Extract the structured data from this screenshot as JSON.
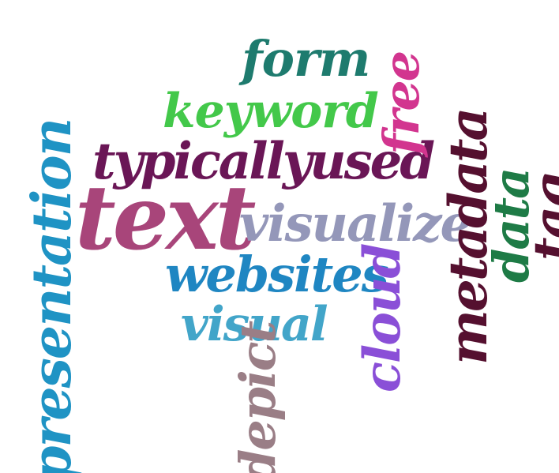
{
  "words": [
    {
      "id": "form",
      "text": "form",
      "color": "#1e7b6e",
      "orientation": "horizontal"
    },
    {
      "id": "keyword",
      "text": "keyword",
      "color": "#43c84a",
      "orientation": "horizontal"
    },
    {
      "id": "typicallyused",
      "text": "typicallyused",
      "color": "#6a1656",
      "orientation": "horizontal"
    },
    {
      "id": "text",
      "text": "text",
      "color": "#a8457a",
      "orientation": "horizontal"
    },
    {
      "id": "visualize",
      "text": "visualize",
      "color": "#9497b9",
      "orientation": "horizontal"
    },
    {
      "id": "websites",
      "text": "websites",
      "color": "#1f86c2",
      "orientation": "horizontal"
    },
    {
      "id": "visual",
      "text": "visual",
      "color": "#42a5c9",
      "orientation": "horizontal"
    },
    {
      "id": "presentation",
      "text": "presentation",
      "color": "#1f93c4",
      "orientation": "vertical"
    },
    {
      "id": "depict",
      "text": "depict",
      "color": "#9a7e86",
      "orientation": "vertical"
    },
    {
      "id": "cloud",
      "text": "cloud",
      "color": "#8a4fd7",
      "orientation": "vertical"
    },
    {
      "id": "free",
      "text": "free",
      "color": "#d2358f",
      "orientation": "vertical"
    },
    {
      "id": "metadata",
      "text": "metadata",
      "color": "#55102f",
      "orientation": "vertical"
    },
    {
      "id": "data",
      "text": "data",
      "color": "#1e7b46",
      "orientation": "vertical"
    },
    {
      "id": "tag",
      "text": "tag",
      "color": "#55102f",
      "orientation": "vertical"
    }
  ]
}
